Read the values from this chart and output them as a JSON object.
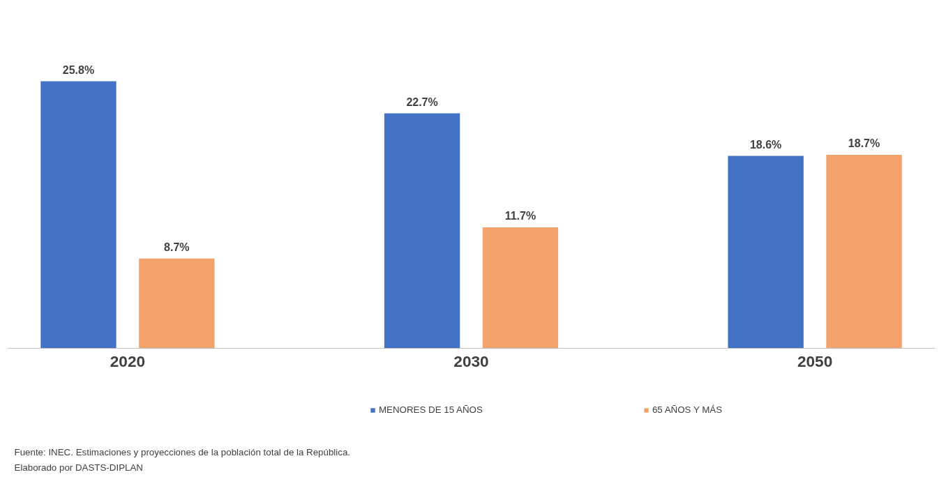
{
  "chart_data": {
    "type": "bar",
    "categories": [
      "2020",
      "2030",
      "2050"
    ],
    "series": [
      {
        "name": "MENORES DE 15 AÑOS",
        "color": "#4472c4",
        "values": [
          25.8,
          22.7,
          18.6
        ],
        "value_labels": [
          "25.8%",
          "22.7%",
          "18.6%"
        ]
      },
      {
        "name": "65 AÑOS Y MÁS",
        "color": "#f4a26b",
        "values": [
          8.7,
          11.7,
          18.7
        ],
        "value_labels": [
          "8.7%",
          "11.7%",
          "18.7%"
        ]
      }
    ],
    "legend": "bottom",
    "grid": false,
    "annotations": [
      "Fuente: INEC. Estimaciones y proyecciones de la población total de la República.",
      "Elaborado por DASTS-DIPLAN"
    ]
  }
}
